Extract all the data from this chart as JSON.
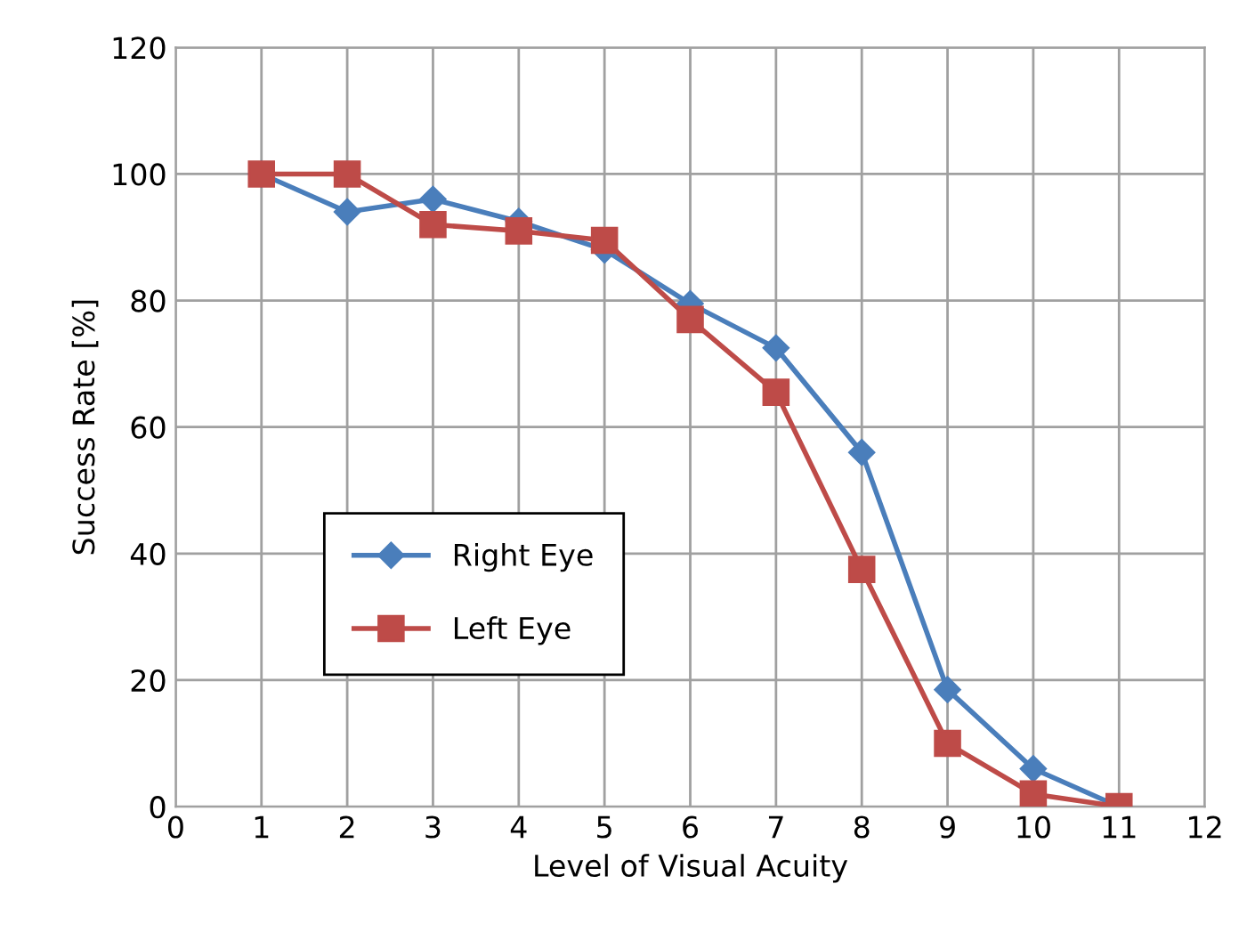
{
  "chart_data": {
    "type": "line",
    "xlabel": "Level of Visual Acuity",
    "ylabel": "Success Rate [%]",
    "x": [
      1,
      2,
      3,
      4,
      5,
      6,
      7,
      8,
      9,
      10,
      11
    ],
    "series": [
      {
        "name": "Right Eye",
        "color": "#4a7ebb",
        "marker": "diamond",
        "values": [
          100,
          94,
          96,
          92.5,
          88,
          79.5,
          72.5,
          56,
          18.5,
          6,
          0
        ]
      },
      {
        "name": "Left Eye",
        "color": "#be4b48",
        "marker": "square",
        "values": [
          100,
          100,
          92,
          91,
          89.5,
          77,
          65.5,
          37.5,
          10,
          2,
          0
        ]
      }
    ],
    "xlim": [
      0,
      12
    ],
    "xticks": [
      0,
      1,
      2,
      3,
      4,
      5,
      6,
      7,
      8,
      9,
      10,
      11,
      12
    ],
    "ylim": [
      0,
      120
    ],
    "yticks": [
      0,
      20,
      40,
      60,
      80,
      100,
      120
    ],
    "grid": true,
    "legend": "left",
    "line_style": "solid"
  }
}
